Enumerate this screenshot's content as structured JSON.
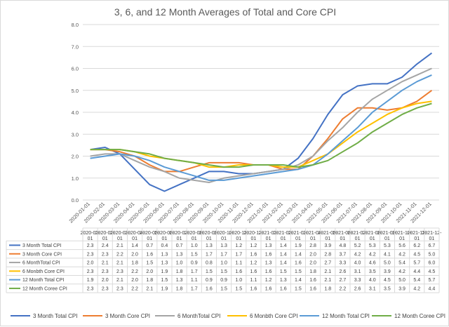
{
  "chart_data": {
    "type": "line",
    "title": "3, 6, and 12 Month Averages of Total and Core CPI",
    "xlabel": "",
    "ylabel": "",
    "ylim": [
      0,
      8
    ],
    "yticks": [
      "0.0",
      "1.0",
      "2.0",
      "3.0",
      "4.0",
      "5.0",
      "6.0",
      "7.0",
      "8.0"
    ],
    "grid": true,
    "legend_position": "bottom",
    "x": [
      "2020-01-01",
      "2020-02-01",
      "2020-03-01",
      "2020-04-01",
      "2020-05-01",
      "2020-06-01",
      "2020-07-01",
      "2020-08-01",
      "2020-09-01",
      "2020-10-01",
      "2020-11-01",
      "2020-12-01",
      "2021-01-01",
      "2021-02-01",
      "2021-03-01",
      "2021-04-01",
      "2021-05-01",
      "2021-06-01",
      "2021-07-01",
      "2021-08-01",
      "2021-09-01",
      "2021-10-01",
      "2021-11-01",
      "2021-12-01"
    ],
    "table_headers": [
      "2020-01-01",
      "2020-02-01",
      "2020-03-01",
      "2020-04-01",
      "2020-05-01",
      "2020-06-01",
      "2020-07-01",
      "2020-08-01",
      "2020-09-01",
      "2020-10-01",
      "2020-11-01",
      "2020-12-01",
      "2021-01-01",
      "2021-02-01",
      "2021-03-01",
      "2021-04-01",
      "2021-05-01",
      "2021-06-01",
      "2021-07-01",
      "2021-08-01",
      "2021-09-01",
      "2021-10-01",
      "2021-11-01",
      "2021-12-01"
    ],
    "series": [
      {
        "name": "3 Month Total CPI",
        "color": "#4472c4",
        "values": [
          2.3,
          2.4,
          2.1,
          1.4,
          0.7,
          0.4,
          0.7,
          1.0,
          1.3,
          1.3,
          1.2,
          1.2,
          1.3,
          1.4,
          1.9,
          2.8,
          3.9,
          4.8,
          5.2,
          5.3,
          5.3,
          5.6,
          6.2,
          6.7
        ]
      },
      {
        "name": "3 Month Core CPI",
        "color": "#ed7d31",
        "values": [
          2.3,
          2.3,
          2.2,
          2.0,
          1.6,
          1.3,
          1.3,
          1.5,
          1.7,
          1.7,
          1.7,
          1.6,
          1.6,
          1.4,
          1.4,
          2.0,
          2.8,
          3.7,
          4.2,
          4.2,
          4.1,
          4.2,
          4.5,
          5.0
        ]
      },
      {
        "name": "6 MonthTotal CPI",
        "color": "#a5a5a5",
        "values": [
          2.0,
          2.1,
          2.1,
          1.8,
          1.5,
          1.3,
          1.0,
          0.9,
          0.8,
          1.0,
          1.1,
          1.2,
          1.3,
          1.4,
          1.6,
          2.0,
          2.7,
          3.3,
          4.0,
          4.6,
          5.0,
          5.4,
          5.7,
          6.0
        ]
      },
      {
        "name": "6 Monbth Core CPI",
        "color": "#ffc000",
        "values": [
          2.3,
          2.3,
          2.3,
          2.2,
          2.0,
          1.9,
          1.8,
          1.7,
          1.5,
          1.5,
          1.6,
          1.6,
          1.6,
          1.5,
          1.5,
          1.8,
          2.1,
          2.6,
          3.1,
          3.5,
          3.9,
          4.2,
          4.4,
          4.5
        ]
      },
      {
        "name": "12 Month Total CPI",
        "color": "#5b9bd5",
        "values": [
          1.9,
          2.0,
          2.1,
          2.0,
          1.8,
          1.5,
          1.3,
          1.1,
          0.9,
          0.9,
          1.0,
          1.1,
          1.2,
          1.3,
          1.4,
          1.6,
          2.1,
          2.7,
          3.3,
          4.0,
          4.5,
          5.0,
          5.4,
          5.7
        ]
      },
      {
        "name": "12 Month  Coree CPI",
        "color": "#70ad47",
        "values": [
          2.3,
          2.3,
          2.3,
          2.2,
          2.1,
          1.9,
          1.8,
          1.7,
          1.6,
          1.5,
          1.5,
          1.6,
          1.6,
          1.6,
          1.5,
          1.6,
          1.8,
          2.2,
          2.6,
          3.1,
          3.5,
          3.9,
          4.2,
          4.4
        ]
      }
    ]
  }
}
